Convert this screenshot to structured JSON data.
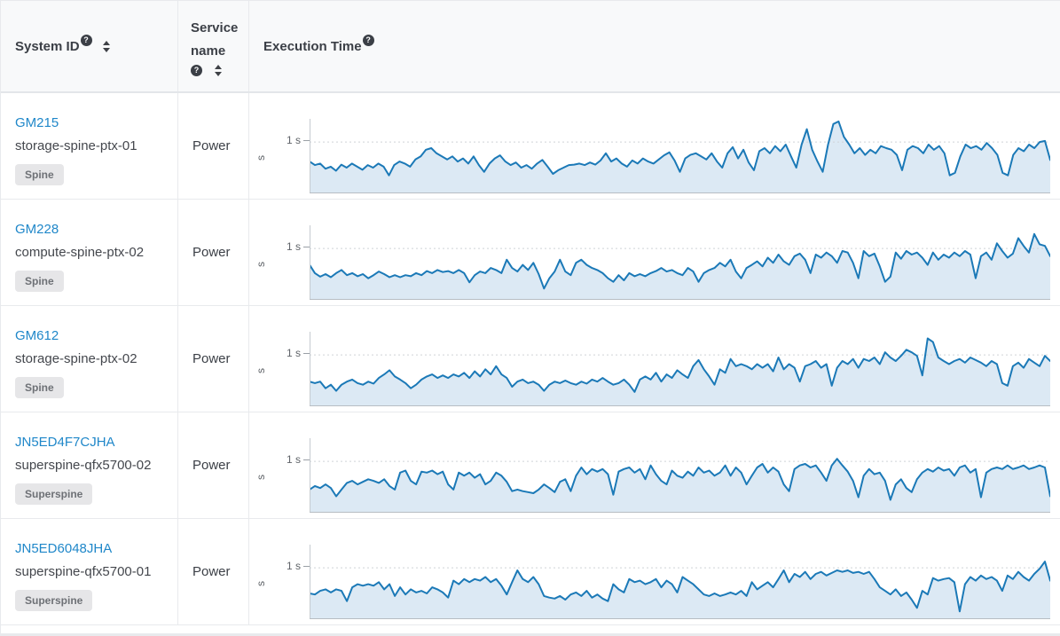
{
  "icons": {
    "help_glyph": "?"
  },
  "colors": {
    "link": "#1f87c9",
    "chart_line": "#1b79b7",
    "chart_fill": "#dce9f4",
    "chart_axis": "#c6cbd0",
    "chart_axis_bottom": "#b7bdc3",
    "chart_gridline": "#cfd3d7",
    "badge_bg": "#e6e6e8",
    "header_bg": "#f8f9fa",
    "border": "#e8eaed"
  },
  "table": {
    "columns": [
      {
        "label": "System ID",
        "has_help": true,
        "sortable": true
      },
      {
        "label": "Service name",
        "has_help": true,
        "sortable": true
      },
      {
        "label": "Execution Time",
        "has_help": true,
        "sortable": false
      }
    ]
  },
  "rows": [
    {
      "system_id": "GM215",
      "hostname": "storage-spine-ptx-01",
      "role": "Spine",
      "service": "Power",
      "chart": {
        "type": "area",
        "ylabel": "s",
        "tick_label": "1 s",
        "gridline_value": 1,
        "ylim": [
          0,
          1.45
        ],
        "values": [
          0.62,
          0.55,
          0.58,
          0.48,
          0.52,
          0.44,
          0.56,
          0.5,
          0.58,
          0.52,
          0.46,
          0.55,
          0.5,
          0.58,
          0.52,
          0.35,
          0.55,
          0.62,
          0.58,
          0.52,
          0.66,
          0.72,
          0.85,
          0.88,
          0.78,
          0.72,
          0.66,
          0.72,
          0.62,
          0.68,
          0.58,
          0.72,
          0.55,
          0.42,
          0.58,
          0.68,
          0.74,
          0.62,
          0.55,
          0.6,
          0.5,
          0.55,
          0.48,
          0.58,
          0.65,
          0.52,
          0.38,
          0.45,
          0.5,
          0.55,
          0.56,
          0.58,
          0.55,
          0.6,
          0.56,
          0.64,
          0.78,
          0.62,
          0.68,
          0.58,
          0.52,
          0.64,
          0.58,
          0.68,
          0.62,
          0.58,
          0.66,
          0.74,
          0.8,
          0.64,
          0.42,
          0.68,
          0.75,
          0.78,
          0.72,
          0.66,
          0.78,
          0.62,
          0.5,
          0.78,
          0.9,
          0.68,
          0.85,
          0.6,
          0.45,
          0.82,
          0.88,
          0.78,
          0.92,
          0.82,
          0.95,
          0.72,
          0.5,
          0.95,
          1.25,
          0.85,
          0.62,
          0.42,
          0.95,
          1.35,
          1.4,
          1.1,
          0.95,
          0.78,
          0.88,
          0.75,
          0.85,
          0.78,
          0.92,
          0.88,
          0.85,
          0.75,
          0.45,
          0.85,
          0.92,
          0.88,
          0.78,
          0.95,
          0.85,
          0.92,
          0.78,
          0.35,
          0.4,
          0.72,
          0.95,
          0.88,
          0.92,
          0.85,
          0.98,
          0.88,
          0.75,
          0.4,
          0.35,
          0.75,
          0.88,
          0.82,
          0.95,
          0.88,
          1.0,
          1.02,
          0.65
        ]
      }
    },
    {
      "system_id": "GM228",
      "hostname": "compute-spine-ptx-02",
      "role": "Spine",
      "service": "Power",
      "chart": {
        "type": "area",
        "ylabel": "s",
        "tick_label": "1 s",
        "gridline_value": 1,
        "ylim": [
          0,
          1.45
        ],
        "values": [
          0.68,
          0.52,
          0.45,
          0.5,
          0.44,
          0.52,
          0.58,
          0.48,
          0.52,
          0.46,
          0.5,
          0.42,
          0.48,
          0.55,
          0.5,
          0.44,
          0.48,
          0.44,
          0.48,
          0.46,
          0.52,
          0.48,
          0.56,
          0.52,
          0.58,
          0.54,
          0.56,
          0.52,
          0.58,
          0.52,
          0.34,
          0.48,
          0.55,
          0.52,
          0.62,
          0.58,
          0.52,
          0.78,
          0.62,
          0.55,
          0.68,
          0.58,
          0.72,
          0.5,
          0.22,
          0.42,
          0.55,
          0.78,
          0.55,
          0.48,
          0.72,
          0.78,
          0.68,
          0.62,
          0.58,
          0.52,
          0.42,
          0.35,
          0.48,
          0.38,
          0.52,
          0.46,
          0.5,
          0.46,
          0.52,
          0.56,
          0.62,
          0.55,
          0.58,
          0.52,
          0.48,
          0.62,
          0.55,
          0.35,
          0.52,
          0.58,
          0.62,
          0.72,
          0.65,
          0.78,
          0.55,
          0.42,
          0.62,
          0.68,
          0.75,
          0.65,
          0.82,
          0.72,
          0.88,
          0.75,
          0.68,
          0.85,
          0.9,
          0.78,
          0.52,
          0.88,
          0.82,
          0.92,
          0.85,
          0.72,
          0.95,
          0.92,
          0.72,
          0.42,
          0.95,
          0.85,
          0.9,
          0.65,
          0.35,
          0.45,
          0.92,
          0.8,
          0.95,
          0.88,
          0.92,
          0.82,
          0.68,
          0.92,
          0.78,
          0.88,
          0.82,
          0.92,
          0.85,
          0.95,
          0.88,
          0.42,
          0.85,
          0.92,
          0.78,
          1.1,
          0.95,
          0.82,
          0.9,
          1.2,
          1.05,
          0.92,
          1.28,
          1.08,
          1.05,
          0.85
        ]
      }
    },
    {
      "system_id": "GM612",
      "hostname": "storage-spine-ptx-02",
      "role": "Spine",
      "service": "Power",
      "chart": {
        "type": "area",
        "ylabel": "s",
        "tick_label": "1 s",
        "gridline_value": 1,
        "ylim": [
          0,
          1.45
        ],
        "values": [
          0.48,
          0.45,
          0.48,
          0.35,
          0.42,
          0.3,
          0.42,
          0.48,
          0.52,
          0.45,
          0.42,
          0.48,
          0.44,
          0.55,
          0.62,
          0.7,
          0.58,
          0.52,
          0.45,
          0.35,
          0.42,
          0.52,
          0.58,
          0.62,
          0.55,
          0.6,
          0.55,
          0.62,
          0.58,
          0.65,
          0.55,
          0.68,
          0.58,
          0.72,
          0.62,
          0.78,
          0.62,
          0.55,
          0.38,
          0.48,
          0.52,
          0.45,
          0.48,
          0.42,
          0.3,
          0.42,
          0.48,
          0.45,
          0.5,
          0.45,
          0.42,
          0.48,
          0.44,
          0.52,
          0.48,
          0.55,
          0.48,
          0.42,
          0.45,
          0.52,
          0.42,
          0.28,
          0.52,
          0.58,
          0.52,
          0.65,
          0.48,
          0.62,
          0.55,
          0.7,
          0.62,
          0.55,
          0.78,
          0.9,
          0.72,
          0.58,
          0.42,
          0.72,
          0.65,
          0.92,
          0.78,
          0.82,
          0.78,
          0.72,
          0.82,
          0.75,
          0.82,
          0.68,
          0.95,
          0.72,
          0.82,
          0.75,
          0.48,
          0.78,
          0.82,
          0.88,
          0.75,
          0.82,
          0.4,
          0.75,
          0.88,
          0.82,
          0.92,
          0.75,
          0.92,
          0.88,
          0.95,
          0.82,
          1.05,
          0.95,
          0.88,
          0.98,
          1.1,
          1.05,
          0.98,
          0.6,
          1.32,
          1.25,
          0.95,
          0.88,
          0.82,
          0.88,
          0.92,
          0.85,
          0.95,
          0.9,
          0.85,
          0.78,
          0.88,
          0.82,
          0.45,
          0.4,
          0.78,
          0.85,
          0.75,
          0.92,
          0.85,
          0.78,
          0.98,
          0.88
        ]
      }
    },
    {
      "system_id": "JN5ED4F7CJHA",
      "hostname": "superspine-qfx5700-02",
      "role": "Superspine",
      "service": "Power",
      "chart": {
        "type": "area",
        "ylabel": "s",
        "tick_label": "1 s",
        "gridline_value": 1,
        "ylim": [
          0,
          1.45
        ],
        "values": [
          0.45,
          0.52,
          0.48,
          0.55,
          0.48,
          0.32,
          0.45,
          0.58,
          0.62,
          0.55,
          0.6,
          0.65,
          0.62,
          0.58,
          0.65,
          0.52,
          0.45,
          0.78,
          0.82,
          0.62,
          0.55,
          0.8,
          0.78,
          0.82,
          0.75,
          0.8,
          0.55,
          0.45,
          0.78,
          0.72,
          0.78,
          0.68,
          0.75,
          0.55,
          0.62,
          0.78,
          0.72,
          0.6,
          0.42,
          0.45,
          0.42,
          0.4,
          0.38,
          0.45,
          0.55,
          0.48,
          0.4,
          0.6,
          0.65,
          0.42,
          0.72,
          0.88,
          0.75,
          0.85,
          0.8,
          0.85,
          0.75,
          0.35,
          0.8,
          0.85,
          0.88,
          0.78,
          0.85,
          0.65,
          0.92,
          0.75,
          0.62,
          0.55,
          0.82,
          0.72,
          0.68,
          0.8,
          0.72,
          0.88,
          0.78,
          0.82,
          0.72,
          0.78,
          0.92,
          0.72,
          0.88,
          0.78,
          0.55,
          0.72,
          0.88,
          0.95,
          0.78,
          0.88,
          0.8,
          0.55,
          0.42,
          0.85,
          0.92,
          0.95,
          0.88,
          0.92,
          0.78,
          0.62,
          0.92,
          1.05,
          0.92,
          0.8,
          0.62,
          0.3,
          0.72,
          0.85,
          0.75,
          0.78,
          0.62,
          0.25,
          0.55,
          0.65,
          0.48,
          0.4,
          0.65,
          0.78,
          0.85,
          0.8,
          0.88,
          0.82,
          0.85,
          0.72,
          0.88,
          0.92,
          0.78,
          0.85,
          0.3,
          0.78,
          0.85,
          0.88,
          0.85,
          0.92,
          0.85,
          0.88,
          0.92,
          0.85,
          0.88,
          0.92,
          0.88,
          0.32
        ]
      }
    },
    {
      "system_id": "JN5ED6048JHA",
      "hostname": "superspine-qfx5700-01",
      "role": "Superspine",
      "service": "Power",
      "chart": {
        "type": "area",
        "ylabel": "s",
        "tick_label": "1 s",
        "gridline_value": 1,
        "ylim": [
          0,
          1.45
        ],
        "values": [
          0.5,
          0.48,
          0.55,
          0.58,
          0.52,
          0.58,
          0.55,
          0.35,
          0.62,
          0.68,
          0.65,
          0.68,
          0.65,
          0.72,
          0.58,
          0.68,
          0.45,
          0.62,
          0.48,
          0.58,
          0.52,
          0.55,
          0.5,
          0.62,
          0.58,
          0.52,
          0.42,
          0.75,
          0.68,
          0.78,
          0.72,
          0.78,
          0.75,
          0.82,
          0.72,
          0.78,
          0.65,
          0.48,
          0.72,
          0.95,
          0.78,
          0.72,
          0.82,
          0.68,
          0.45,
          0.42,
          0.4,
          0.45,
          0.38,
          0.48,
          0.52,
          0.45,
          0.55,
          0.42,
          0.48,
          0.4,
          0.35,
          0.68,
          0.58,
          0.52,
          0.78,
          0.72,
          0.75,
          0.68,
          0.72,
          0.78,
          0.62,
          0.75,
          0.68,
          0.52,
          0.82,
          0.75,
          0.68,
          0.58,
          0.48,
          0.45,
          0.5,
          0.45,
          0.48,
          0.52,
          0.48,
          0.55,
          0.45,
          0.72,
          0.58,
          0.65,
          0.72,
          0.62,
          0.78,
          0.95,
          0.72,
          0.88,
          0.82,
          0.92,
          0.78,
          0.88,
          0.92,
          0.85,
          0.9,
          0.95,
          0.92,
          0.95,
          0.9,
          0.92,
          0.88,
          0.92,
          0.78,
          0.62,
          0.55,
          0.48,
          0.58,
          0.45,
          0.52,
          0.38,
          0.22,
          0.55,
          0.48,
          0.8,
          0.75,
          0.78,
          0.8,
          0.72,
          0.15,
          0.68,
          0.82,
          0.75,
          0.85,
          0.78,
          0.82,
          0.75,
          0.55,
          0.85,
          0.78,
          0.92,
          0.82,
          0.75,
          0.88,
          0.98,
          1.12,
          0.75
        ]
      }
    }
  ]
}
